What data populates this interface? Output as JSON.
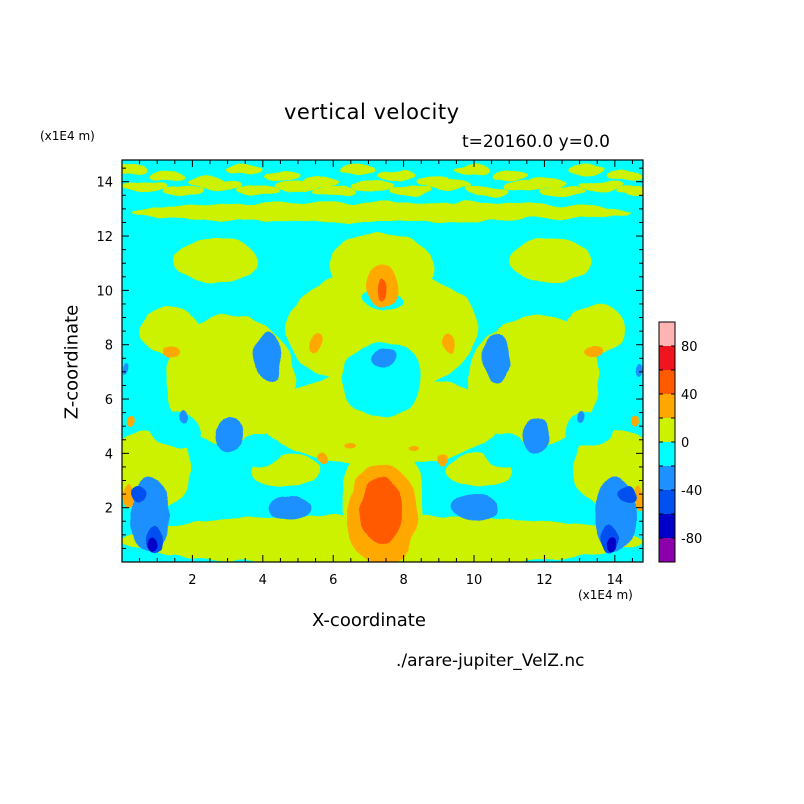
{
  "chart_data": {
    "type": "heatmap",
    "title": "vertical velocity",
    "subtitle": "t=20160.0 y=0.0",
    "xlabel": "X-coordinate",
    "ylabel": "Z-coordinate",
    "x_unit": "(x1E4 m)",
    "y_unit": "(x1E4 m)",
    "xlim": [
      0,
      14.8
    ],
    "ylim": [
      0,
      14.8
    ],
    "x_ticks": [
      2,
      4,
      6,
      8,
      10,
      12,
      14
    ],
    "y_ticks": [
      2,
      4,
      6,
      8,
      10,
      12,
      14
    ],
    "colorbar": {
      "levels": [
        -100,
        -80,
        -60,
        -40,
        -20,
        0,
        20,
        40,
        60,
        80,
        100
      ],
      "colors": [
        "#8B00AA",
        "#0000C8",
        "#0050F0",
        "#1E90FF",
        "#00FFFF",
        "#CCF200",
        "#FFA800",
        "#FF5A00",
        "#F0141E",
        "#FFB4B4"
      ],
      "tick_labels": [
        "80",
        "40",
        "0",
        "-40",
        "-80"
      ]
    },
    "background_level_color": "#00FFFF"
  },
  "source": "./arare-jupiter_VelZ.nc"
}
